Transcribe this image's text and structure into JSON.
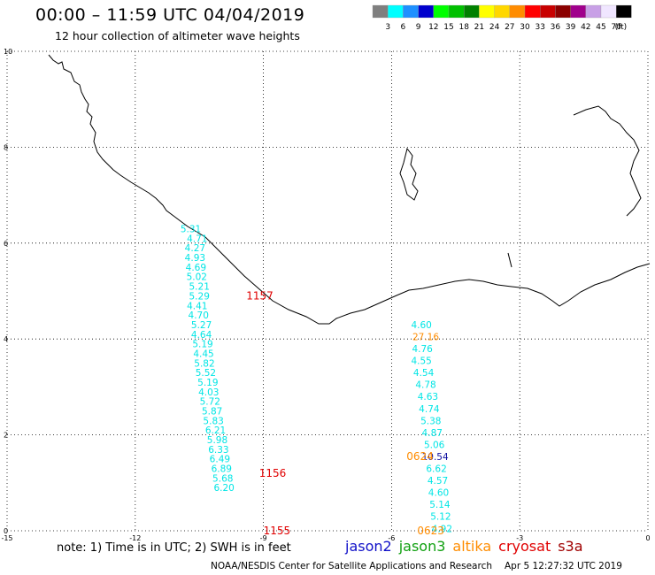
{
  "header": {
    "title": "00:00 – 11:59 UTC 04/04/2019",
    "subtitle": "12 hour collection of altimeter wave heights"
  },
  "legend": {
    "unit": "(ft)",
    "bins": [
      {
        "label": "3",
        "color": "#7f7f7f"
      },
      {
        "label": "6",
        "color": "#00ffff"
      },
      {
        "label": "9",
        "color": "#1e90ff"
      },
      {
        "label": "12",
        "color": "#0000cd"
      },
      {
        "label": "15",
        "color": "#00ff00"
      },
      {
        "label": "18",
        "color": "#00c000"
      },
      {
        "label": "21",
        "color": "#008000"
      },
      {
        "label": "24",
        "color": "#ffff00"
      },
      {
        "label": "27",
        "color": "#ffd700"
      },
      {
        "label": "30",
        "color": "#ff8c00"
      },
      {
        "label": "33",
        "color": "#ff0000"
      },
      {
        "label": "36",
        "color": "#c80000"
      },
      {
        "label": "39",
        "color": "#8b0000"
      },
      {
        "label": "42",
        "color": "#a0008c"
      },
      {
        "label": "45",
        "color": "#c8a0e6"
      },
      {
        "label": "70",
        "color": "#f0e6ff"
      },
      {
        "label": "",
        "color": "#000000"
      }
    ]
  },
  "axes": {
    "x_ticks": [
      "-15",
      "-12",
      "-9",
      "-6",
      "-3",
      "0"
    ],
    "y_ticks": [
      "0",
      "2",
      "4",
      "6",
      "8",
      "10"
    ],
    "xlim": [
      -15,
      0
    ],
    "ylim": [
      0,
      10
    ]
  },
  "tracks": [
    {
      "name": "west-pass",
      "color": "#00e5e5",
      "values": [
        "5.31",
        "4.71",
        "4.27",
        "4.93",
        "4.69",
        "5.02",
        "5.21",
        "5.29",
        "4.41",
        "4.70",
        "5.27",
        "4.64",
        "5.19",
        "4.45",
        "5.82",
        "5.52",
        "5.19",
        "4.03",
        "5.72",
        "5.87",
        "5.83",
        "6.21",
        "5.98",
        "6.33",
        "6.49",
        "6.89",
        "5.68",
        "6.20"
      ],
      "lon": [
        -10.7,
        -10.55,
        -10.6,
        -10.6,
        -10.58,
        -10.56,
        -10.5,
        -10.5,
        -10.55,
        -10.52,
        -10.45,
        -10.45,
        -10.42,
        -10.4,
        -10.38,
        -10.35,
        -10.3,
        -10.28,
        -10.25,
        -10.2,
        -10.17,
        -10.12,
        -10.08,
        -10.05,
        -10.02,
        -9.98,
        -9.95,
        -9.92
      ],
      "lat": [
        6.3,
        6.1,
        5.9,
        5.7,
        5.5,
        5.3,
        5.1,
        4.9,
        4.7,
        4.5,
        4.3,
        4.1,
        3.9,
        3.7,
        3.5,
        3.3,
        3.1,
        2.9,
        2.7,
        2.5,
        2.3,
        2.1,
        1.9,
        1.7,
        1.5,
        1.3,
        1.1,
        0.9
      ]
    },
    {
      "name": "east-pass",
      "color": "#00e5e5",
      "values": [
        "4.60",
        "27.16",
        "4.76",
        "4.55",
        "4.54",
        "4.78",
        "4.63",
        "4.74",
        "5.38",
        "4.87",
        "5.06",
        "10.54",
        "6.62",
        "4.57",
        "4.60",
        "5.14",
        "5.12",
        "4.92"
      ],
      "value_colors": [
        "#00e5e5",
        "#ff8c00",
        "#00e5e5",
        "#00e5e5",
        "#00e5e5",
        "#00e5e5",
        "#00e5e5",
        "#00e5e5",
        "#00e5e5",
        "#00e5e5",
        "#00e5e5",
        "#1010a0",
        "#00e5e5",
        "#00e5e5",
        "#00e5e5",
        "#00e5e5",
        "#00e5e5",
        "#00e5e5"
      ],
      "lon": [
        -5.3,
        -5.2,
        -5.28,
        -5.3,
        -5.25,
        -5.2,
        -5.15,
        -5.12,
        -5.08,
        -5.05,
        -5.0,
        -4.98,
        -4.95,
        -4.92,
        -4.9,
        -4.87,
        -4.85,
        -4.82
      ],
      "lat": [
        4.3,
        4.05,
        3.8,
        3.55,
        3.3,
        3.05,
        2.8,
        2.55,
        2.3,
        2.05,
        1.8,
        1.55,
        1.3,
        1.05,
        0.8,
        0.55,
        0.3,
        0.05
      ]
    }
  ],
  "time_labels": [
    {
      "text": "1157",
      "color": "#e00000",
      "lon": -9.4,
      "lat": 4.9
    },
    {
      "text": "1156",
      "color": "#e00000",
      "lon": -9.1,
      "lat": 1.2
    },
    {
      "text": "1155",
      "color": "#e00000",
      "lon": -9.0,
      "lat": 0.0
    },
    {
      "text": "0624",
      "color": "#ff8c00",
      "lon": -5.65,
      "lat": 1.55
    },
    {
      "text": "0623",
      "color": "#ff8c00",
      "lon": -5.4,
      "lat": 0.0
    }
  ],
  "footer": {
    "note": "note: 1) Time is in UTC; 2) SWH is in feet",
    "satellites": [
      {
        "name": "jason2",
        "color": "#1010c8"
      },
      {
        "name": "jason3",
        "color": "#10a010"
      },
      {
        "name": "altika",
        "color": "#ff8c00"
      },
      {
        "name": "cryosat",
        "color": "#e00000"
      },
      {
        "name": "s3a",
        "color": "#a00000"
      }
    ],
    "credit": "NOAA/NESDIS Center for Satellite Applications and Research",
    "timestamp": "Apr 5 12:27:32 UTC 2019"
  }
}
